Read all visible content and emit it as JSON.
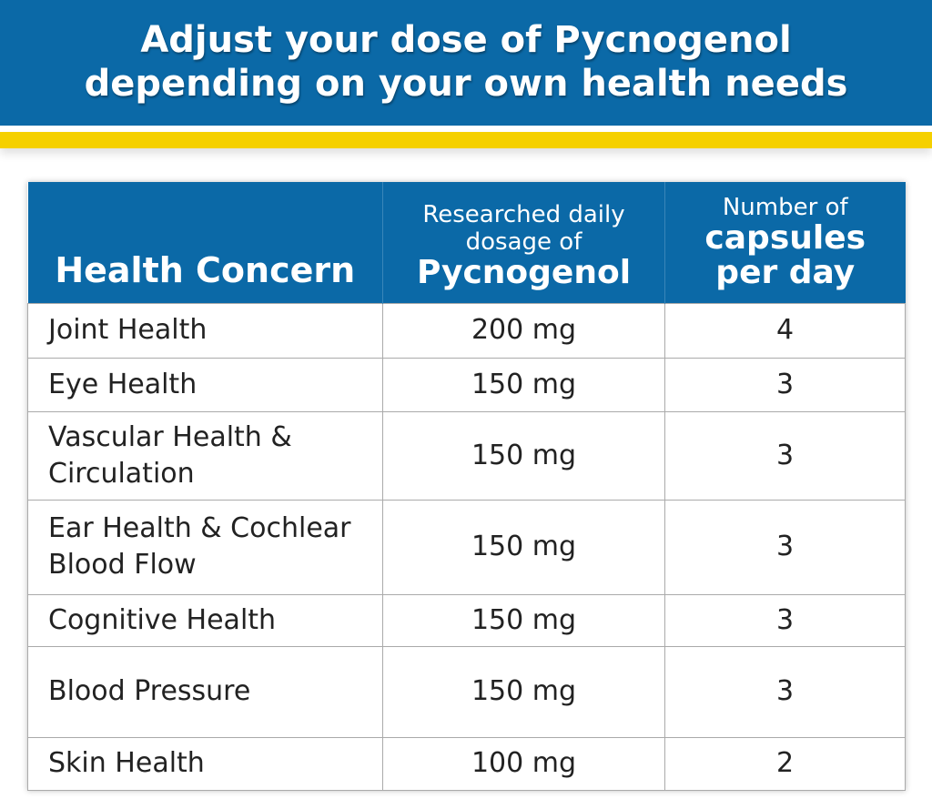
{
  "title_line1": "Adjust your dose of Pycnogenol",
  "title_line2": "depending on your own health needs",
  "colors": {
    "blue": "#0b69a7",
    "yellow": "#f5d000"
  },
  "headers": {
    "col1": "Health Concern",
    "col2_small": "Researched daily dosage of",
    "col2_big": "Pycnogenol",
    "col3_small": "Number of",
    "col3_big": "capsules per day"
  },
  "rows": [
    {
      "concern": "Joint Health",
      "dosage": "200 mg",
      "capsules": "4"
    },
    {
      "concern": "Eye Health",
      "dosage": "150 mg",
      "capsules": "3"
    },
    {
      "concern": "Vascular Health & Circulation",
      "dosage": "150 mg",
      "capsules": "3"
    },
    {
      "concern": "Ear Health & Cochlear Blood Flow",
      "dosage": "150 mg",
      "capsules": "3"
    },
    {
      "concern": "Cognitive Health",
      "dosage": "150 mg",
      "capsules": "3"
    },
    {
      "concern": "Blood Pressure",
      "dosage": "150 mg",
      "capsules": "3"
    },
    {
      "concern": "Skin Health",
      "dosage": "100 mg",
      "capsules": "2"
    }
  ]
}
